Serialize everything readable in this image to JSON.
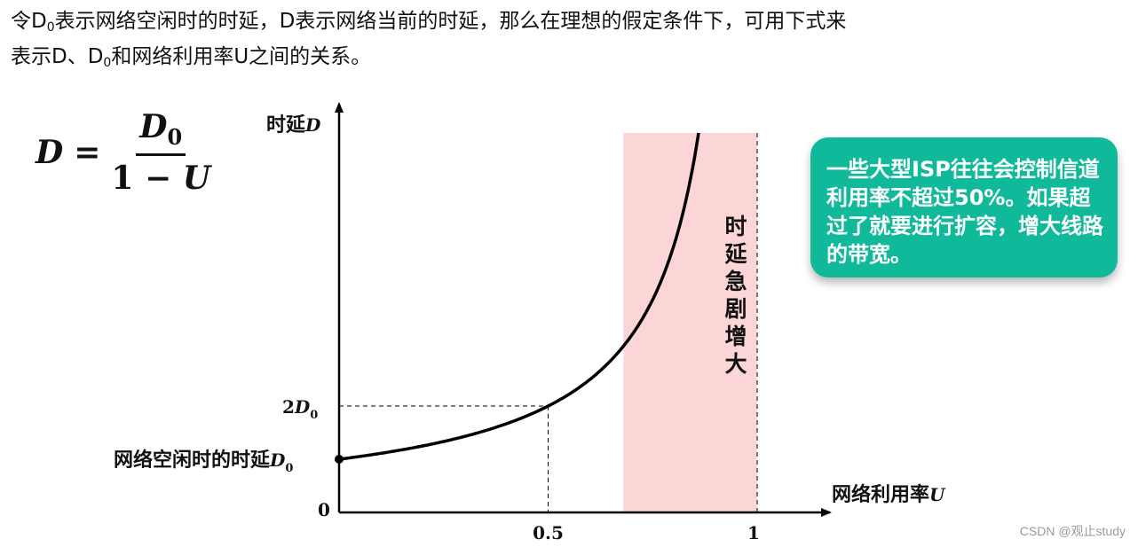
{
  "intro": {
    "line1_a": "令D",
    "line1_sub": "0",
    "line1_b": "表示网络空闲时的时延，D表示网络当前的时延，那么在理想的假定条件下，可用下式来",
    "line2_a": "表示D、D",
    "line2_sub": "0",
    "line2_b": "和网络利用率U之间的关系。"
  },
  "formula": {
    "lhs": "D",
    "eq": "=",
    "num_var": "D",
    "num_sub": "0",
    "den_one": "1",
    "den_minus": "−",
    "den_var": "U"
  },
  "chart_data": {
    "type": "line",
    "function": "D = D0 / (1 - U)",
    "x_label_text": "网络利用率",
    "x_label_var": "U",
    "y_label_text": "时延",
    "y_label_var": "D",
    "x_ticks": [
      "0.5",
      "1"
    ],
    "origin_label": "0",
    "y_tick_2d0": {
      "coef": "2",
      "var": "D",
      "sub": "0"
    },
    "start_point_label_text": "网络空闲时的时延",
    "start_point_label_var": "D",
    "start_point_label_sub": "0",
    "xlim": [
      0,
      1
    ],
    "series": [
      {
        "x": [
          0,
          0.1,
          0.2,
          0.3,
          0.4,
          0.5,
          0.6,
          0.7,
          0.8,
          0.9,
          0.98
        ],
        "y": [
          1,
          1.111,
          1.25,
          1.429,
          1.667,
          2,
          2.5,
          3.333,
          5,
          10,
          50
        ],
        "unit": "D0"
      }
    ],
    "highlight_region": {
      "x_from": 0.68,
      "x_to": 1,
      "color": "#fcd6d6"
    },
    "region_label": "时延急剧增大",
    "colors": {
      "curve": "#000000",
      "region": "#fcd6d6"
    }
  },
  "callout": {
    "text": "一些大型ISP往往会控制信道利用率不超过50%。如果超过了就要进行扩容，增大线路的带宽。",
    "color": "#0fb99a"
  },
  "watermark": "CSDN @观止study"
}
